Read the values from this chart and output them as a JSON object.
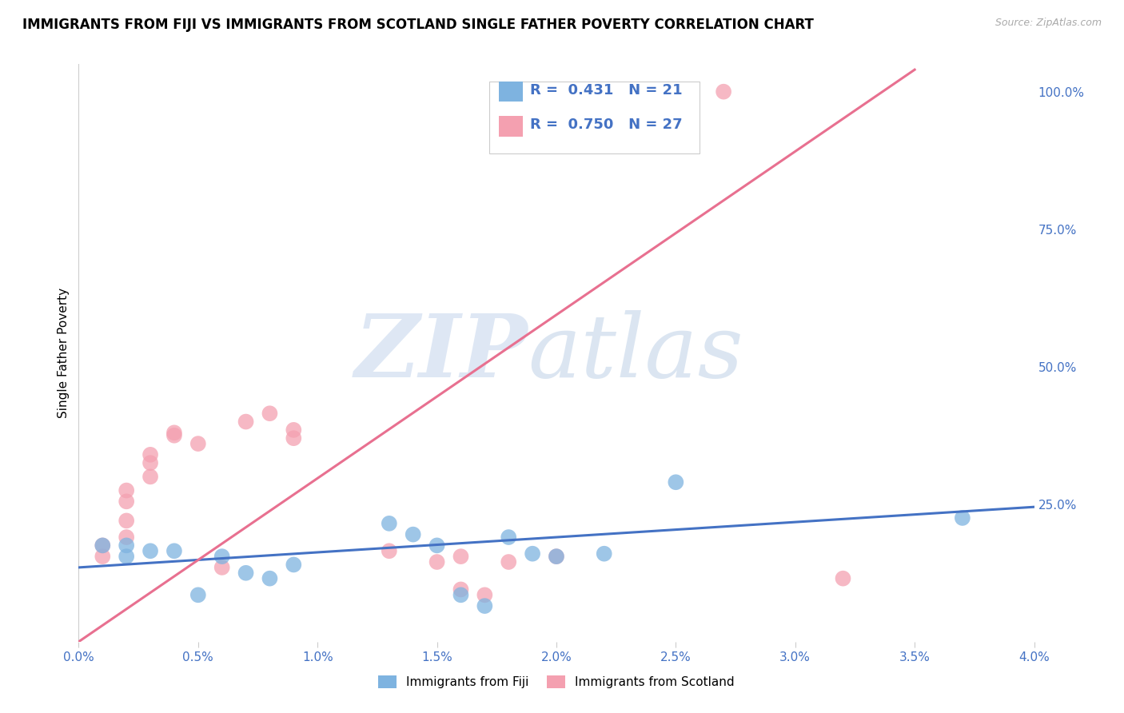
{
  "title": "IMMIGRANTS FROM FIJI VS IMMIGRANTS FROM SCOTLAND SINGLE FATHER POVERTY CORRELATION CHART",
  "source": "Source: ZipAtlas.com",
  "ylabel": "Single Father Poverty",
  "xlim": [
    0.0,
    0.04
  ],
  "ylim": [
    0.0,
    1.05
  ],
  "xtick_labels": [
    "0.0%",
    "0.5%",
    "1.0%",
    "1.5%",
    "2.0%",
    "2.5%",
    "3.0%",
    "3.5%",
    "4.0%"
  ],
  "xtick_values": [
    0.0,
    0.005,
    0.01,
    0.015,
    0.02,
    0.025,
    0.03,
    0.035,
    0.04
  ],
  "ytick_labels": [
    "100.0%",
    "75.0%",
    "50.0%",
    "25.0%"
  ],
  "ytick_values": [
    1.0,
    0.75,
    0.5,
    0.25
  ],
  "fiji_color": "#7EB3E0",
  "scotland_color": "#F4A0B0",
  "fiji_line_color": "#4472C4",
  "scotland_line_color": "#E87090",
  "fiji_R": 0.431,
  "fiji_N": 21,
  "scotland_R": 0.75,
  "scotland_N": 27,
  "fiji_scatter_x": [
    0.001,
    0.002,
    0.002,
    0.003,
    0.004,
    0.005,
    0.006,
    0.007,
    0.008,
    0.009,
    0.013,
    0.014,
    0.015,
    0.016,
    0.017,
    0.018,
    0.019,
    0.02,
    0.022,
    0.025,
    0.037
  ],
  "fiji_scatter_y": [
    0.175,
    0.175,
    0.155,
    0.165,
    0.165,
    0.085,
    0.155,
    0.125,
    0.115,
    0.14,
    0.215,
    0.195,
    0.175,
    0.085,
    0.065,
    0.19,
    0.16,
    0.155,
    0.16,
    0.29,
    0.225
  ],
  "scotland_scatter_x": [
    0.001,
    0.001,
    0.002,
    0.002,
    0.002,
    0.002,
    0.003,
    0.003,
    0.003,
    0.004,
    0.004,
    0.005,
    0.006,
    0.007,
    0.008,
    0.009,
    0.009,
    0.013,
    0.015,
    0.016,
    0.016,
    0.017,
    0.018,
    0.02,
    0.022,
    0.027,
    0.032
  ],
  "scotland_scatter_y": [
    0.155,
    0.175,
    0.19,
    0.22,
    0.255,
    0.275,
    0.3,
    0.325,
    0.34,
    0.375,
    0.38,
    0.36,
    0.135,
    0.4,
    0.415,
    0.37,
    0.385,
    0.165,
    0.145,
    0.155,
    0.095,
    0.085,
    0.145,
    0.155,
    1.0,
    1.0,
    0.115
  ],
  "fiji_line_x": [
    0.0,
    0.04
  ],
  "fiji_line_y": [
    0.135,
    0.245
  ],
  "scotland_line_x": [
    0.0,
    0.035
  ],
  "scotland_line_y": [
    0.0,
    1.04
  ],
  "background_color": "#ffffff",
  "grid_color": "#dddddd",
  "title_fontsize": 12,
  "label_fontsize": 11,
  "tick_fontsize": 11,
  "legend_fontsize": 13
}
